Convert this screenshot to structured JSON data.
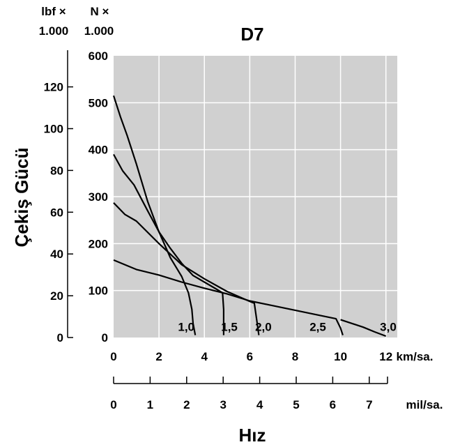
{
  "chart_data": {
    "type": "line",
    "title": "D7",
    "ylabel": "Çekiş Gücü",
    "xlabel": "Hız",
    "y_unit_left": [
      "lbf ×",
      "1.000"
    ],
    "y_unit_right": [
      "N ×",
      "1.000"
    ],
    "x_unit_kmh": "km/sa.",
    "x_unit_mph": "mil/sa.",
    "xlim": [
      0,
      12.5
    ],
    "ylim_N": [
      0,
      600
    ],
    "ylim_lbf": [
      0,
      135
    ],
    "grid": true,
    "x_ticks_kmh": [
      "0",
      "2",
      "4",
      "6",
      "8",
      "10",
      "12"
    ],
    "x_ticks_mph": [
      "0",
      "1",
      "2",
      "3",
      "4",
      "5",
      "6",
      "7"
    ],
    "y_ticks_N": [
      "0",
      "100",
      "200",
      "300",
      "400",
      "500",
      "600"
    ],
    "y_ticks_lbf": [
      "0",
      "20",
      "40",
      "60",
      "80",
      "100",
      "120"
    ],
    "series": [
      {
        "label": "1,0",
        "x": [
          0,
          0.3,
          0.6,
          1.0,
          1.5,
          2.0,
          2.5,
          3.0,
          3.3,
          3.45,
          3.5,
          3.6
        ],
        "y": [
          515,
          470,
          430,
          370,
          290,
          225,
          170,
          130,
          95,
          60,
          30,
          5
        ]
      },
      {
        "label": "1,5",
        "x": [
          0,
          0.4,
          0.9,
          1.5,
          2.0,
          2.5,
          3.0,
          3.5,
          4.0,
          4.5,
          4.8,
          4.85,
          4.85
        ],
        "y": [
          390,
          355,
          325,
          270,
          225,
          190,
          158,
          132,
          118,
          104,
          95,
          60,
          5
        ]
      },
      {
        "label": "2,0",
        "x": [
          0,
          0.5,
          1.0,
          2.0,
          3.0,
          4.0,
          5.0,
          6.0,
          6.2,
          6.3,
          6.4
        ],
        "y": [
          287,
          262,
          248,
          200,
          155,
          125,
          98,
          77,
          73,
          40,
          5
        ]
      },
      {
        "label": "2,5",
        "x": [
          0,
          1.0,
          2.0,
          3.0,
          4.0,
          5.0,
          6.0,
          7.0,
          8.0,
          9.0,
          9.8,
          10.0,
          10.1
        ],
        "y": [
          165,
          145,
          133,
          118,
          105,
          93,
          78,
          68,
          58,
          48,
          40,
          20,
          5
        ]
      },
      {
        "label": "3,0",
        "x": [
          10.0,
          11.0,
          11.5,
          12.0
        ],
        "y": [
          38,
          22,
          12,
          3
        ]
      }
    ]
  }
}
